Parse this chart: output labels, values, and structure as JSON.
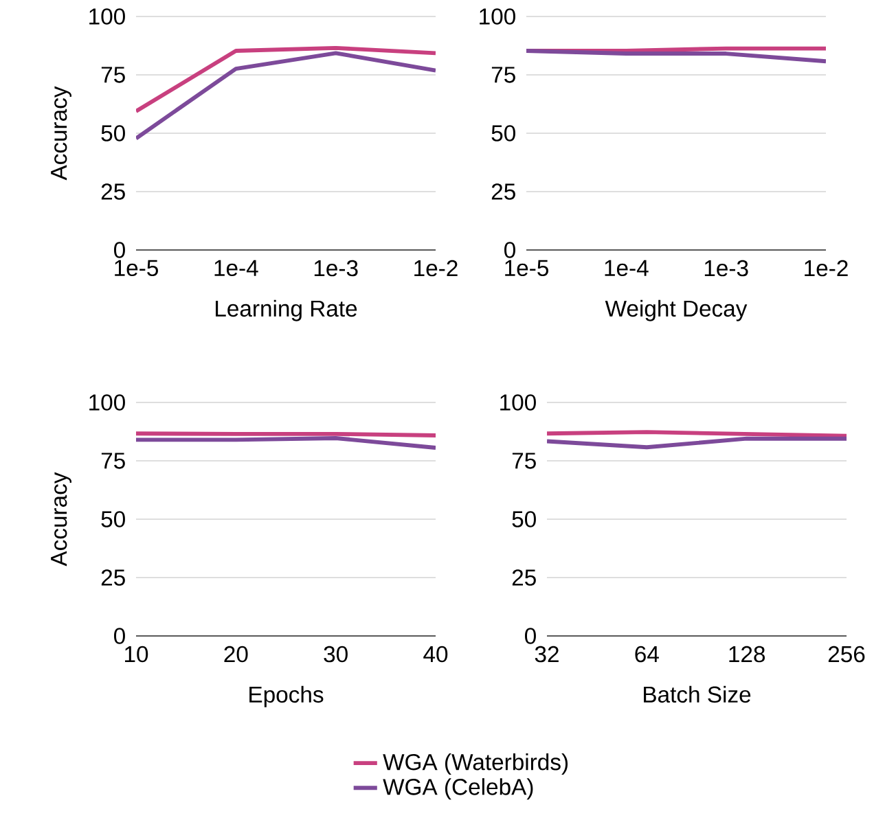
{
  "chart_data": [
    {
      "type": "line",
      "xlabel": "Learning Rate",
      "ylabel": "Accuracy",
      "categories": [
        "1e-5",
        "1e-4",
        "1e-3",
        "1e-2"
      ],
      "ylim": [
        0,
        100
      ],
      "yticks": [
        0,
        25,
        50,
        75,
        100
      ],
      "grid": "y",
      "series": [
        {
          "color": "#c8407f",
          "values": [
            59.4,
            85.3,
            86.5,
            84.3
          ]
        },
        {
          "color": "#7d4a9a",
          "values": [
            47.8,
            77.6,
            84.3,
            76.9
          ]
        }
      ]
    },
    {
      "type": "line",
      "xlabel": "Weight Decay",
      "categories": [
        "1e-5",
        "1e-4",
        "1e-3",
        "1e-2"
      ],
      "ylim": [
        0,
        100
      ],
      "yticks": [
        0,
        25,
        50,
        75,
        100
      ],
      "grid": "y",
      "series": [
        {
          "color": "#c8407f",
          "values": [
            85.3,
            85.3,
            86.3,
            86.3
          ]
        },
        {
          "color": "#7d4a9a",
          "values": [
            85.3,
            84.1,
            84.1,
            80.8
          ]
        }
      ]
    },
    {
      "type": "line",
      "xlabel": "Epochs",
      "ylabel": "Accuracy",
      "categories": [
        "10",
        "20",
        "30",
        "40"
      ],
      "ylim": [
        0,
        100
      ],
      "yticks": [
        0,
        25,
        50,
        75,
        100
      ],
      "grid": "y",
      "legend": "bottom",
      "series": [
        {
          "name": "WGA (Waterbirds)",
          "color": "#c8407f",
          "values": [
            86.7,
            86.5,
            86.5,
            85.9
          ]
        },
        {
          "name": "WGA (CelebA)",
          "color": "#7d4a9a",
          "values": [
            84.0,
            84.0,
            84.7,
            80.6
          ]
        }
      ]
    },
    {
      "type": "line",
      "xlabel": "Batch Size",
      "categories": [
        "32",
        "64",
        "128",
        "256"
      ],
      "ylim": [
        0,
        100
      ],
      "yticks": [
        0,
        25,
        50,
        75,
        100
      ],
      "grid": "y",
      "series": [
        {
          "color": "#c8407f",
          "values": [
            86.7,
            87.3,
            86.5,
            85.7
          ]
        },
        {
          "color": "#7d4a9a",
          "values": [
            83.4,
            80.8,
            84.5,
            84.5
          ]
        }
      ]
    }
  ]
}
